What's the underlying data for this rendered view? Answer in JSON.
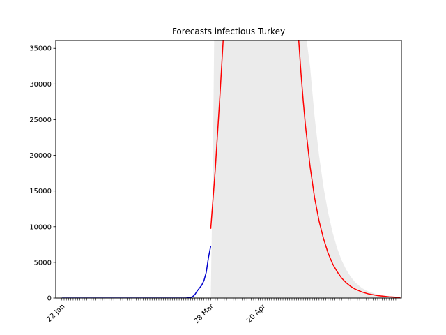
{
  "chart_data": {
    "type": "line",
    "title": "Forecasts infectious Turkey",
    "xlabel": "",
    "ylabel": "",
    "x_tick_labels": [
      "22 Jan",
      "28 Mar",
      "20 Apr"
    ],
    "y_ticks": [
      0,
      5000,
      10000,
      15000,
      20000,
      25000,
      30000,
      35000
    ],
    "ylim": [
      0,
      36100
    ],
    "xlim_days": [
      -2.7,
      150.5
    ],
    "x_tick_days": [
      0,
      66,
      89
    ],
    "grid": false,
    "legend": "none",
    "colors": {
      "observed": "#0000cc",
      "forecast": "#ff0000",
      "interval": "#ebebeb"
    },
    "series": [
      {
        "role": "observed",
        "x_days": [
          0,
          30,
          45,
          52,
          55,
          57,
          58,
          59,
          60,
          61,
          62,
          63,
          64,
          65,
          66
        ],
        "values": [
          0,
          0,
          0,
          0,
          5,
          70,
          200,
          500,
          1000,
          1400,
          1800,
          2450,
          3600,
          5700,
          7300
        ]
      },
      {
        "role": "forecast",
        "x_days": [
          66,
          68,
          70,
          71.5,
          73,
          95,
          105,
          106,
          107,
          108,
          110,
          112,
          114,
          116,
          118,
          120,
          122,
          124,
          126,
          128,
          130,
          133,
          136,
          140,
          145,
          150
        ],
        "values": [
          9700,
          18000,
          28000,
          36100,
          45000,
          45000,
          36100,
          31500,
          27600,
          24100,
          18500,
          14100,
          10800,
          8300,
          6300,
          4800,
          3700,
          2800,
          2150,
          1640,
          1250,
          850,
          570,
          340,
          170,
          80
        ]
      }
    ],
    "interval": {
      "x_days": [
        66,
        67,
        67.5,
        68,
        70,
        100,
        108.5,
        110,
        112,
        114,
        116,
        118,
        120,
        122,
        124,
        126,
        128,
        130,
        133,
        136,
        140,
        145,
        150
      ],
      "upper": [
        0,
        20000,
        36100,
        45000,
        45000,
        45000,
        36100,
        32500,
        25500,
        20000,
        15500,
        12000,
        9200,
        7000,
        5300,
        4000,
        3000,
        2200,
        1400,
        900,
        500,
        250,
        120
      ],
      "lower": [
        0,
        0,
        0,
        0,
        0,
        0,
        0,
        0,
        0,
        0,
        0,
        0,
        0,
        0,
        0,
        0,
        0,
        0,
        0,
        0,
        0,
        0,
        0
      ]
    }
  }
}
